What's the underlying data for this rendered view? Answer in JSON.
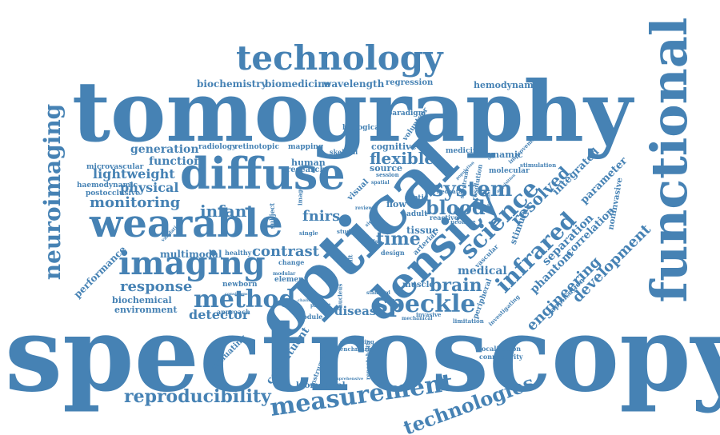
{
  "colors": {
    "text": "#4682b4",
    "background": "#ffffff"
  },
  "words": {
    "spectroscopy": "spectroscopy",
    "tomography": "tomography",
    "optical": "optical",
    "functional": "functional",
    "density": "density",
    "diffuse": "diffuse",
    "wearable": "wearable",
    "technology": "technology",
    "neuroimaging": "neuroimaging",
    "imaging": "imaging",
    "science": "science",
    "speckle": "speckle",
    "infrared": "infrared",
    "method": "method",
    "measurement": "measurement",
    "technologies": "technologies",
    "system": "system",
    "blood": "blood",
    "reproducibility": "reproducibility",
    "monitoring": "monitoring",
    "flexible": "flexible",
    "brain": "brain",
    "response": "response",
    "resolved": "resolved",
    "infant": "infant",
    "engineering": "engineering",
    "development": "development",
    "contrast": "contrast",
    "time": "time",
    "fnirs": "fnirs",
    "physical": "physical",
    "lightweight": "lightweight",
    "function": "function",
    "generation": "generation",
    "detector": "detector",
    "multimodal": "multimodal",
    "medical": "medical",
    "disease": "disease",
    "phantom": "phantom",
    "separation": "separation",
    "correlation": "correlation",
    "integrated": "integrated",
    "parameter": "parameter",
    "biochemistry": "biochemistry",
    "biomedicine": "biomedicine",
    "wavelength": "wavelength",
    "regression": "regression",
    "hemodynamic": "hemodynamic",
    "tissue": "tissue",
    "source": "source",
    "cognitive": "cognitive",
    "human": "human",
    "research": "research",
    "constituent": "constituent",
    "biomedical": "biomedical",
    "environment": "environment",
    "biochemical": "biochemical",
    "performance": "performance",
    "evaluating": "evaluating",
    "microvascular": "microvascular",
    "haemodynamic": "haemodynamic",
    "postocclusive": "postocclusive",
    "radiology": "radiology",
    "retinotopic": "retinotopic",
    "mapping": "mapping",
    "skeletal": "skeletal",
    "biological": "biological",
    "paradigm": "paradigm",
    "volunteer": "volunteer",
    "medicine": "medicine",
    "dynamic": "dynamic",
    "molecular": "molecular",
    "stimulation": "stimulation",
    "improvement": "improvement",
    "noninvasive": "noninvasive",
    "stimulus": "stimulus",
    "newborn": "newborn",
    "element": "element",
    "healthy": "healthy",
    "change": "change",
    "approach": "approach",
    "muscle": "muscle",
    "module": "module",
    "mechanical": "mechanical",
    "developing": "developing",
    "benchmark": "benchmark",
    "instrument": "instrument",
    "localization": "localization",
    "connectivity": "connectivity",
    "application": "application",
    "investigating": "investigating",
    "peripheral": "peripheral",
    "design": "design",
    "adult": "adult",
    "neonatal": "neonatal",
    "neonate": "neonate",
    "flow": "flow",
    "optic": "optic",
    "arterial": "arterial",
    "reactive": "reactive",
    "vascular": "vascular",
    "spectrum": "spectrum",
    "resolution": "resolution",
    "visual": "visual",
    "session": "session",
    "spatial": "spatial",
    "review": "review",
    "subject": "subject",
    "image": "image",
    "validation": "validation",
    "limitation": "limitation",
    "comprehensive": "comprehensive",
    "standard": "standard",
    "present": "present",
    "challenge": "challenge",
    "invasive": "invasive",
    "repeatability": "repeatability",
    "result": "result",
    "pulse": "pulse",
    "single": "single",
    "modular": "modular",
    "consistency": "consistency",
    "study": "study",
    "nucleus": "nucleus",
    "signal": "signal",
    "domain": "domain",
    "population": "population",
    "acquisition": "acquisition"
  }
}
